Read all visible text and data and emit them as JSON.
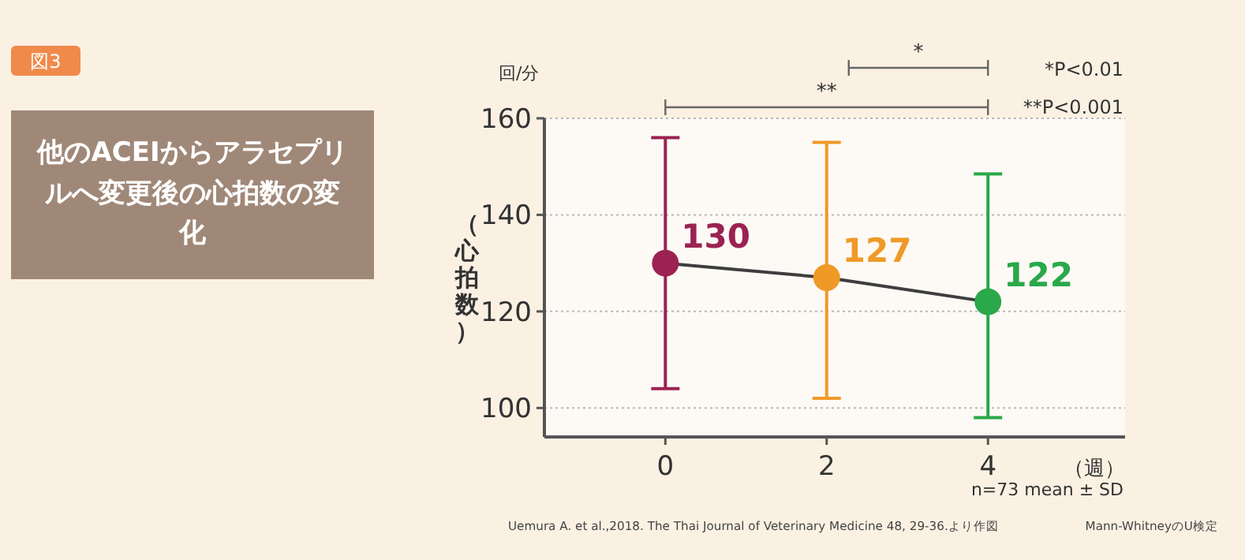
{
  "chart_data": {
    "type": "line",
    "title": "他のACEIからアラセプリルへ変更後の心拍数の変化",
    "xlabel": "（週）",
    "ylabel": "（心拍数）",
    "annotations": [
      "図3",
      "回/分",
      "*",
      "**",
      "*P<0.01",
      "**P<0.001",
      "n=73 mean ± SD",
      "Uemura A. et al.,2018. The Thai Journal of Veterinary Medicine 48, 29-36.より作図",
      "Mann-WhitneyのU検定"
    ],
    "x": [
      0,
      2,
      4
    ],
    "xlim": [
      -1.5,
      5.7
    ],
    "xticks": [
      0,
      2,
      4
    ],
    "ylim": [
      94,
      160
    ],
    "yticks": [
      100,
      120,
      140,
      160
    ],
    "series": [
      {
        "color": "#3d3d3d",
        "colors": [
          "#9b2252",
          "#ef9a27",
          "#2aa84a"
        ],
        "values": [
          130,
          127,
          122
        ],
        "errors": [
          [
            104,
            156
          ],
          [
            102,
            155
          ],
          [
            98,
            148.5
          ]
        ]
      }
    ],
    "data_labels": true,
    "grid": "y",
    "marker": "circle"
  }
}
